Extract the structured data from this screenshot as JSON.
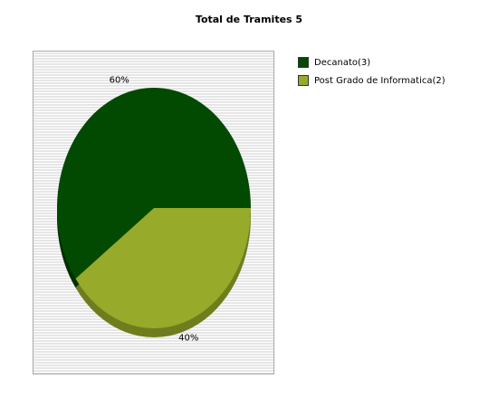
{
  "chart_data": {
    "type": "pie",
    "title": "Total de Tramites 5",
    "legend_position": "top-right",
    "slices": [
      {
        "name": "Decanato(3)",
        "value": 3,
        "percent_label": "60%",
        "color": "#024a02"
      },
      {
        "name": "Post Grado de Informatica(2)",
        "value": 2,
        "percent_label": "40%",
        "color": "#97aa29"
      }
    ],
    "shadow_colors": {
      "dark": "#013001",
      "light": "#6f7d1e"
    }
  }
}
